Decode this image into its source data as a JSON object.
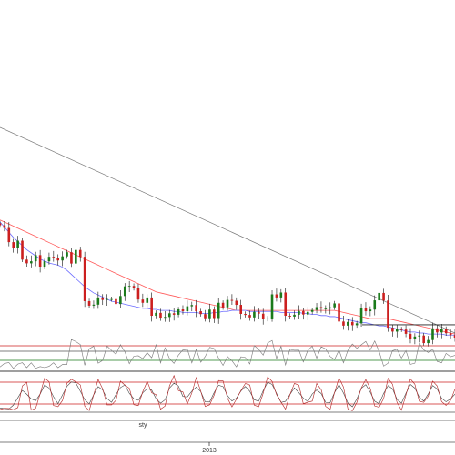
{
  "chart_data": {
    "type": "line",
    "colors": {
      "candle_up": "#1a7a1a",
      "candle_down": "#cc1f1f",
      "candle_wick": "#111111",
      "ma_fast": "#6b6bff",
      "ma_slow": "#ff5a5a",
      "trendline": "#7a7a7a",
      "support": "#222222",
      "osc1_line": "#777777",
      "osc1_upper": "#cc1f1f",
      "osc1_lower": "#1a7a1a",
      "osc2_fast": "#b22222",
      "osc2_slow": "#444444",
      "osc2_levels": "#cc1f1f"
    },
    "x_range": [
      0,
      500
    ],
    "price_range": [
      0,
      100
    ],
    "price_closes": [
      52.4,
      51.1,
      44.2,
      41.5,
      44.9,
      35.7,
      33.9,
      34.9,
      37.9,
      32.3,
      34.9,
      37.1,
      36.7,
      35.3,
      37.3,
      39.3,
      33.8,
      40.4,
      37.1,
      15.5,
      13.3,
      13.8,
      17.3,
      16.1,
      16.5,
      16.5,
      14.1,
      18.0,
      22.7,
      22.9,
      21.9,
      16.3,
      14.7,
      17.3,
      8.4,
      9.8,
      7.5,
      7.8,
      9.6,
      8.9,
      11.5,
      10.6,
      13.0,
      13.6,
      10.6,
      9.2,
      7.2,
      11.4,
      7.3,
      14.7,
      12.5,
      16.1,
      15.7,
      13.7,
      9.3,
      8.8,
      7.6,
      10.3,
      9.4,
      6.9,
      7.1,
      18.8,
      17.3,
      19.7,
      8.4,
      8.0,
      8.9,
      10.7,
      9.0,
      10.3,
      11.2,
      12.6,
      11.9,
      11.9,
      12.5,
      14.4,
      5.6,
      3.6,
      5.4,
      3.8,
      4.7,
      12.2,
      10.6,
      11.4,
      15.9,
      19.5,
      15.8,
      2.6,
      0.7,
      1.8,
      1.7,
      -0.4,
      -3.0,
      -1.7,
      -1.2,
      -4.9,
      -3.4,
      2.3,
      0.3,
      2.0,
      -0.1,
      -1.0,
      -2.2
    ],
    "ma_fast": [
      54.0,
      51.5,
      49.0,
      46.5,
      44.5,
      42.5,
      40.5,
      39.0,
      37.5,
      36.0,
      35.0,
      34.0,
      33.5,
      33.0,
      32.0,
      30.5,
      28.5,
      26.5,
      24.5,
      22.5,
      21.0,
      19.5,
      18.5,
      17.5,
      16.5,
      15.5,
      15.0,
      14.5,
      14.0,
      13.5,
      13.0,
      12.5,
      12.0,
      12.0,
      11.5,
      11.5,
      11.0,
      11.0,
      11.0,
      10.5,
      10.5,
      10.0,
      10.0,
      10.0,
      10.0,
      9.5,
      9.5,
      9.5,
      10.0,
      10.0,
      10.5,
      10.5,
      11.0,
      11.0,
      11.0,
      11.0,
      10.5,
      10.5,
      10.5,
      10.5,
      10.5,
      10.5,
      10.5,
      10.0,
      10.0,
      10.0,
      10.0,
      10.0,
      9.5,
      9.5,
      9.0,
      9.0,
      8.5,
      8.5,
      8.0,
      8.0,
      7.5,
      7.0,
      6.5,
      6.0,
      5.5,
      5.0,
      5.0,
      4.5,
      4.0,
      3.5,
      3.5,
      3.0,
      2.5,
      2.0,
      1.5,
      1.0,
      0.5,
      0.5,
      0.0,
      0.0,
      -0.5,
      -0.5,
      -0.5,
      -0.5,
      -1.0,
      -1.0,
      -1.0
    ],
    "ma_slow": [
      55.0,
      54.0,
      53.0,
      52.0,
      51.0,
      50.0,
      49.0,
      48.0,
      47.0,
      46.0,
      45.0,
      44.0,
      43.0,
      42.0,
      41.0,
      40.0,
      39.0,
      38.0,
      37.0,
      36.0,
      35.0,
      34.0,
      33.0,
      32.0,
      31.0,
      30.0,
      29.0,
      28.0,
      27.0,
      26.0,
      25.0,
      24.0,
      23.0,
      22.0,
      21.0,
      20.0,
      19.5,
      19.0,
      18.5,
      18.0,
      17.5,
      17.0,
      16.5,
      16.0,
      15.5,
      15.0,
      14.5,
      14.0,
      13.5,
      13.0,
      12.5,
      12.0,
      11.5,
      11.0,
      11.0,
      11.0,
      11.0,
      11.0,
      11.0,
      11.0,
      11.0,
      11.0,
      11.0,
      11.0,
      11.0,
      11.0,
      11.0,
      11.0,
      11.0,
      11.0,
      11.0,
      11.0,
      11.0,
      11.0,
      11.0,
      11.0,
      10.5,
      10.0,
      9.5,
      9.0,
      8.5,
      8.0,
      7.5,
      7.0,
      7.0,
      7.0,
      7.0,
      7.0,
      6.5,
      6.0,
      5.5,
      5.0,
      4.5,
      4.0,
      3.5,
      3.0,
      2.5,
      2.0,
      1.5,
      1.0,
      0.5,
      0.0,
      -0.5
    ],
    "trendline": [
      [
        0,
        100
      ],
      [
        500,
        0
      ]
    ],
    "support_level": 4.0,
    "osc1_levels": [
      70,
      30
    ],
    "osc1_values": [
      12.0,
      21.4,
      24.0,
      8.0,
      19.7,
      23.4,
      10.0,
      23.3,
      8.0,
      12.9,
      10.0,
      13.6,
      23.4,
      9.9,
      18.6,
      18.4,
      87.1,
      81.5,
      73.4,
      16.4,
      61.6,
      68.8,
      22.2,
      29.7,
      69.2,
      57.4,
      46.4,
      73.2,
      53.1,
      20.8,
      41.3,
      42.6,
      34.8,
      50.9,
      37.2,
      72.7,
      23.0,
      64.3,
      35.1,
      21.6,
      44.3,
      58.6,
      60.2,
      22.9,
      60.3,
      24.6,
      40.4,
      65.7,
      62.5,
      36.2,
      16.1,
      40.7,
      28.8,
      12.2,
      39.8,
      37.8,
      19.8,
      70.6,
      59.9,
      44.3,
      77.7,
      84.4,
      34.9,
      68.7,
      17.2,
      60.3,
      57.8,
      58.1,
      25.5,
      57.3,
      69.1,
      35.9,
      67.2,
      61.7,
      40.7,
      32.4,
      58.0,
      23.1,
      57.8,
      74.9,
      63.2,
      72.8,
      81.9,
      58.6,
      83.1,
      54.0,
      14.2,
      22.3,
      56.5,
      60.5,
      36.1,
      56.7,
      19.0,
      22.1,
      76.9,
      58.7,
      51.4,
      61.1,
      27.0,
      23.2,
      49.0,
      40.0,
      43.6
    ],
    "osc2_levels": [
      80,
      20
    ],
    "osc2_fast": [
      4.7,
      8.3,
      7.6,
      4.2,
      10.2,
      69.7,
      79.6,
      3.3,
      8.3,
      48.3,
      91.2,
      81.1,
      15.9,
      12.8,
      29.4,
      77.2,
      87.7,
      80.9,
      72.5,
      13.8,
      1.9,
      45.4,
      87.7,
      62.0,
      17.6,
      17.7,
      30.1,
      82.9,
      71.9,
      63.4,
      18.1,
      15.7,
      53.7,
      82.0,
      51.0,
      45.7,
      6.0,
      14.5,
      69.7,
      98.2,
      57.2,
      53.0,
      19.9,
      50.1,
      92.4,
      55.5,
      13.1,
      17.9,
      44.1,
      84.4,
      83.6,
      35.9,
      12.2,
      33.1,
      56.8,
      76.4,
      72.1,
      16.7,
      12.6,
      49.7,
      94.5,
      82.0,
      45.6,
      25.5,
      6.0,
      45.8,
      76.4,
      71.8,
      20.8,
      24.8,
      27.9,
      76.3,
      59.6,
      13.5,
      5.0,
      51.6,
      91.5,
      66.7,
      6.1,
      1.7,
      24.4,
      64.4,
      87.1,
      62.9,
      14.6,
      11.3,
      34.9,
      90.6,
      74.2,
      24.5,
      3.0,
      44.6,
      89.0,
      74.2,
      27.6,
      24.6,
      41.2,
      82.9,
      69.7,
      26.6,
      16.2,
      29.5,
      61.1
    ],
    "osc2_slow": [
      8.8,
      7.6,
      6.4,
      17.1,
      37.0,
      57.6,
      46.9,
      34.1,
      29.2,
      47.4,
      72.2,
      64.0,
      40.0,
      20.9,
      44.6,
      68.6,
      80.7,
      77.9,
      55.3,
      31.6,
      20.2,
      45.4,
      67.9,
      58.7,
      35.1,
      24.5,
      46.1,
      65.2,
      72.4,
      49.4,
      34.4,
      30.2,
      50.8,
      62.3,
      58.3,
      34.2,
      22.3,
      31.6,
      64.1,
      77.1,
      69.4,
      40.8,
      39.4,
      55.0,
      66.5,
      54.3,
      26.1,
      25.5,
      51.4,
      71.6,
      67.8,
      43.2,
      28.1,
      36.1,
      55.5,
      68.4,
      54.8,
      31.7,
      27.7,
      56.6,
      79.6,
      73.8,
      49.0,
      24.2,
      27.3,
      46.1,
      64.4,
      51.2,
      36.1,
      26.6,
      47.3,
      58.6,
      48.8,
      24.7,
      23.4,
      51.4,
      73.0,
      50.0,
      22.4,
      12.5,
      34.1,
      63.4,
      73.2,
      52.6,
      27.7,
      20.5,
      48.9,
      70.6,
      61.9,
      32.7,
      22.2,
      49.5,
      73.7,
      63.8,
      38.5,
      28.1,
      47.6,
      70.8,
      61.3,
      35.9,
      26.1,
      34.0,
      47.3
    ],
    "x_labels": [
      {
        "text": "sty",
        "pos": 157
      },
      {
        "text": "2013",
        "pos": 230
      }
    ]
  }
}
